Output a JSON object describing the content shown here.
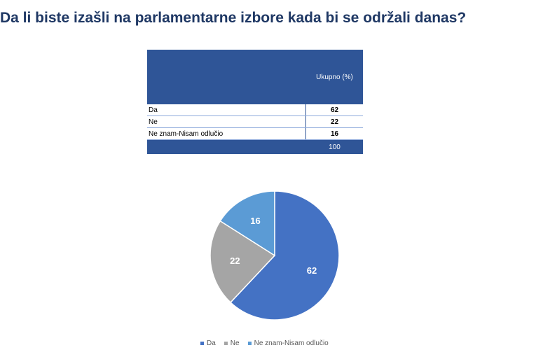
{
  "title": "Da li biste izašli na parlamentarne izbore kada bi se održali danas?",
  "table": {
    "header": "Ukupno (%)",
    "rows": [
      {
        "label": "Da",
        "value": "62"
      },
      {
        "label": "Ne",
        "value": "22"
      },
      {
        "label": "Ne znam-Nisam odlučio",
        "value": "16"
      }
    ],
    "total": "100"
  },
  "chart_data": {
    "type": "pie",
    "categories": [
      "Da",
      "Ne",
      "Ne znam-Nisam odlučio"
    ],
    "values": [
      62,
      22,
      16
    ],
    "colors": [
      "#4472c4",
      "#a5a5a5",
      "#5b9bd5"
    ],
    "data_labels": [
      "62",
      "22",
      "16"
    ],
    "legend_position": "bottom"
  }
}
